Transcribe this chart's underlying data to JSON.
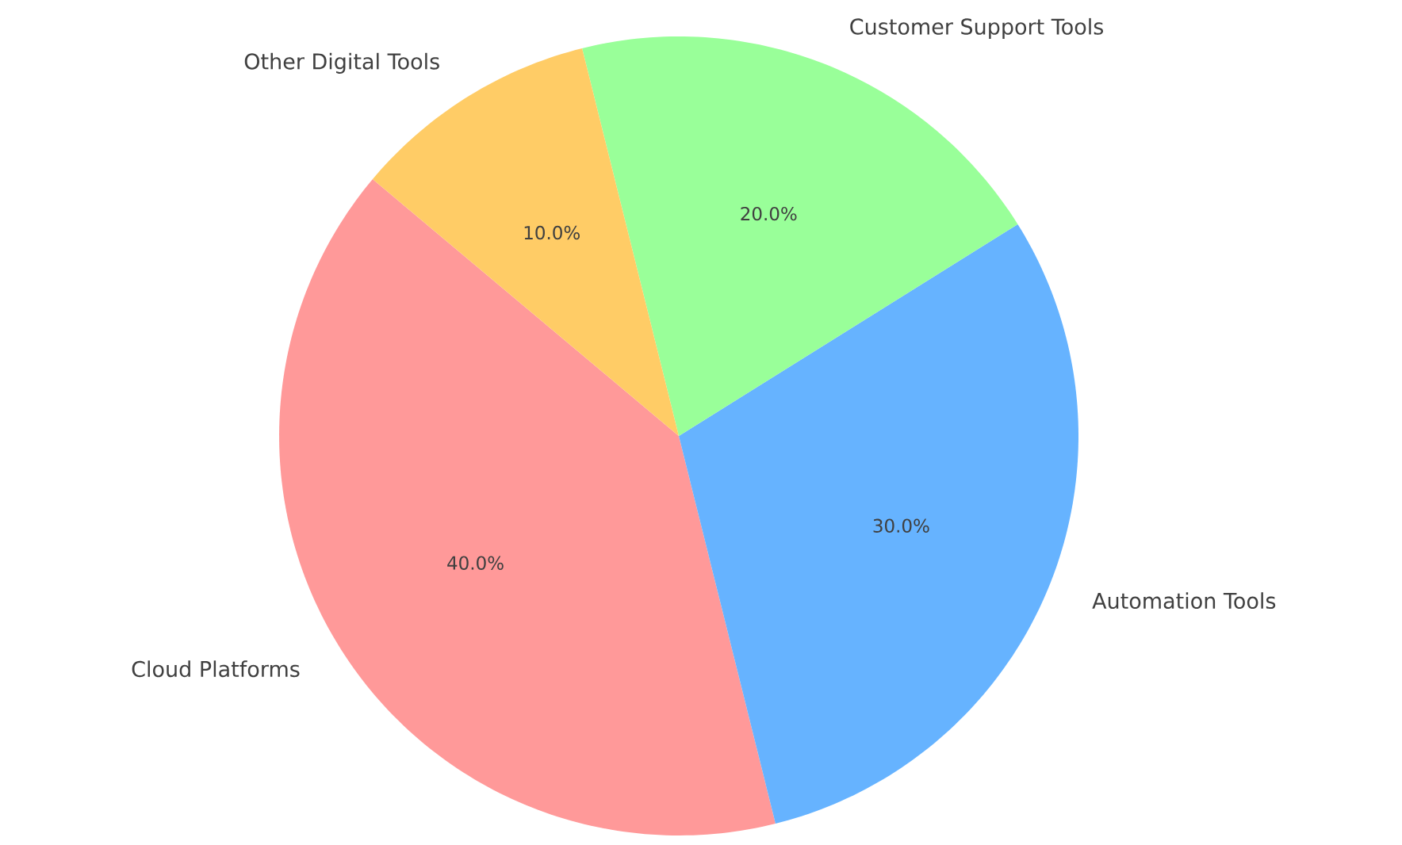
{
  "chart_data": {
    "type": "pie",
    "categories": [
      "Cloud Platforms",
      "Automation Tools",
      "Customer Support Tools",
      "Other Digital Tools"
    ],
    "values": [
      40,
      30,
      20,
      10
    ],
    "colors": [
      "#ff9999",
      "#66b3ff",
      "#99ff99",
      "#ffcc66"
    ],
    "value_labels": [
      "40.0%",
      "30.0%",
      "20.0%",
      "10.0%"
    ]
  }
}
